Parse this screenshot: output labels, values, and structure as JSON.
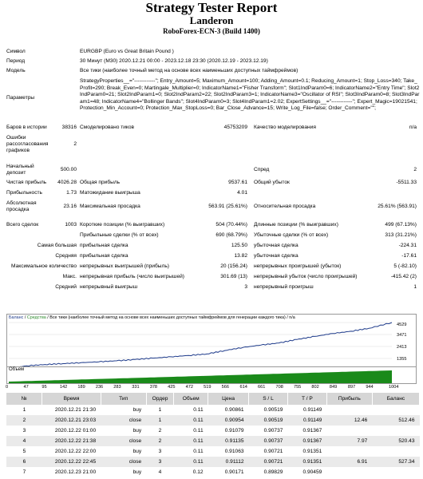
{
  "header": {
    "title": "Strategy Tester Report",
    "name": "Landeron",
    "server": "RoboForex-ECN-3 (Build 1400)"
  },
  "info": {
    "symbol_label": "Символ",
    "symbol_value": "EURGBP (Euro vs Great Britain Pound )",
    "period_label": "Период",
    "period_value": "30 Минут (M30) 2020.12.21 00:00 - 2023.12.18 23:30 (2020.12.19 - 2023.12.19)",
    "model_label": "Модель",
    "model_value": "Все тики (наиболее точный метод на основе всех наименьших доступных таймфреймов)",
    "params_label": "Параметры",
    "params_value": "StrategyProperties__=\"------------\"; Entry_Amount=5; Maximum_Amount=100; Adding_Amount=0.1; Reducing_Amount=1; Stop_Loss=340; Take_Profit=290; Break_Even=0; Martingale_Multiplier=0; IndicatorName1=\"Fisher Transform\"; Slot1IndParam0=6; IndicatorName2=\"Entry Time\"; Slot2IndParam0=21; Slot2IndParam1=0; Slot2IndParam2=22; Slot2IndParam3=1; IndicatorName3=\"Oscillator of RSI\"; Slot3IndParam0=8; Slot3IndParam1=48; IndicatorName4=\"Bollinger Bands\"; Slot4IndParam0=3; Slot4IndParam1=2.02; ExpertSettings__=\"------------\"; Expert_Magic=19021541; Protection_Min_Account=0; Protection_Max_StopLoss=0; Bar_Close_Advance=15; Write_Log_File=false; Order_Comment=\"\";",
    "bars_label": "Баров в истории",
    "bars_value": "38316",
    "ticks_label": "Смоделировано тиков",
    "ticks_value": "45753209",
    "quality_label": "Качество моделирования",
    "quality_value": "n/a",
    "errors_label": "Ошибки рассогласования графиков",
    "errors_value": "2"
  },
  "results": {
    "deposit_label": "Начальный депозит",
    "deposit_value": "500.00",
    "spread_label": "Спред",
    "spread_value": "2",
    "net_label": "Чистая прибыль",
    "net_value": "4026.28",
    "gross_profit_label": "Общая прибыль",
    "gross_profit_value": "9537.61",
    "gross_loss_label": "Общий убыток",
    "gross_loss_value": "-5511.33",
    "pf_label": "Прибыльность",
    "pf_value": "1.73",
    "payoff_label": "Матожидание выигрыша",
    "payoff_value": "4.01",
    "abs_dd_label": "Абсолютная просадка",
    "abs_dd_value": "23.16",
    "max_dd_label": "Максимальная просадка",
    "max_dd_value": "563.91 (25.61%)",
    "rel_dd_label": "Относительная просадка",
    "rel_dd_value": "25.61% (563.91)",
    "total_label": "Всего сделок",
    "total_value": "1003",
    "short_label": "Короткие позиции (% выигравших)",
    "short_value": "504 (70.44%)",
    "long_label": "Длинные позиции (% выигравших)",
    "long_value": "499 (67.13%)",
    "profit_trades_label": "Прибыльные сделки (% от всех)",
    "profit_trades_value": "690 (68.79%)",
    "loss_trades_label": "Убыточные сделки (% от всех)",
    "loss_trades_value": "313 (31.21%)",
    "largest_label": "Самая большая",
    "largest_profit_label": "прибыльная сделка",
    "largest_profit_value": "125.50",
    "largest_loss_label": "убыточная сделка",
    "largest_loss_value": "-224.31",
    "average_label": "Средняя",
    "average_profit_label": "прибыльная сделка",
    "average_profit_value": "13.82",
    "average_loss_label": "убыточная сделка",
    "average_loss_value": "-17.61",
    "maxcount_label": "Максимальное количество",
    "maxcount_wins_label": "непрерывных выигрышей (прибыль)",
    "maxcount_wins_value": "20 (156.24)",
    "maxcount_losses_label": "непрерывных проигрышей (убыток)",
    "maxcount_losses_value": "5 (-82.10)",
    "max_label": "Макс.",
    "max_profit_label": "непрерывная прибыль (число выигрышей)",
    "max_profit_value": "301.69 (13)",
    "max_loss_label": "непрерывный убыток (число проигрышей)",
    "max_loss_value": "-415.42 (2)",
    "avg_cons_label": "Средний",
    "avg_cons_wins_label": "непрерывный выигрыш",
    "avg_cons_wins_value": "3",
    "avg_cons_losses_label": "непрерывный проигрыш",
    "avg_cons_losses_value": "1"
  },
  "chart_data": {
    "type": "line",
    "legend_balance": "Баланс",
    "legend_sep": " / ",
    "legend_equity": "Средства",
    "legend_text": " / Все тики (наиболее точный метод на основе всех наименьших доступных таймфреймов для генерации каждого тика) / n/a",
    "volume_label": "Объем",
    "y_ticks": [
      "4529",
      "3471",
      "2413",
      "1355",
      "297"
    ],
    "ylim": [
      297,
      4529
    ],
    "x_ticks": [
      "0",
      "47",
      "95",
      "142",
      "189",
      "236",
      "283",
      "331",
      "378",
      "425",
      "472",
      "519",
      "566",
      "614",
      "661",
      "708",
      "755",
      "802",
      "849",
      "897",
      "944",
      "1004"
    ],
    "series": [
      {
        "x": [
          0,
          47,
          95,
          142,
          189,
          236,
          283,
          331,
          378,
          425,
          472,
          519,
          566,
          614,
          661,
          708,
          755,
          802,
          849,
          897,
          944,
          1004
        ],
        "values": [
          500,
          700,
          820,
          900,
          980,
          1060,
          1150,
          1260,
          1380,
          1500,
          1620,
          1750,
          2050,
          2330,
          2540,
          2720,
          3030,
          3300,
          3560,
          3760,
          4020,
          4526
        ]
      }
    ],
    "colors": {
      "balance": "#1d3a8a",
      "volume": "#1a8a1a"
    }
  },
  "trades": {
    "headers": [
      "№",
      "Время",
      "Тип",
      "Ордер",
      "Объем",
      "Цена",
      "S / L",
      "T / P",
      "Прибыль",
      "Баланс"
    ],
    "rows": [
      [
        "1",
        "2020.12.21 21:30",
        "buy",
        "1",
        "0.11",
        "0.90861",
        "0.90519",
        "0.91149",
        "",
        ""
      ],
      [
        "2",
        "2020.12.21 23:03",
        "close",
        "1",
        "0.11",
        "0.90954",
        "0.90519",
        "0.91149",
        "12.46",
        "512.46"
      ],
      [
        "3",
        "2020.12.22 01:00",
        "buy",
        "2",
        "0.11",
        "0.91079",
        "0.90737",
        "0.91367",
        "",
        ""
      ],
      [
        "4",
        "2020.12.22 21:38",
        "close",
        "2",
        "0.11",
        "0.91135",
        "0.90737",
        "0.91367",
        "7.97",
        "520.43"
      ],
      [
        "5",
        "2020.12.22 22:00",
        "buy",
        "3",
        "0.11",
        "0.91063",
        "0.90721",
        "0.91351",
        "",
        ""
      ],
      [
        "6",
        "2020.12.22 22:45",
        "close",
        "3",
        "0.11",
        "0.91112",
        "0.90721",
        "0.91351",
        "6.91",
        "527.34"
      ],
      [
        "7",
        "2020.12.23 21:00",
        "buy",
        "4",
        "0.12",
        "0.90171",
        "0.89829",
        "0.90459",
        "",
        ""
      ]
    ]
  }
}
